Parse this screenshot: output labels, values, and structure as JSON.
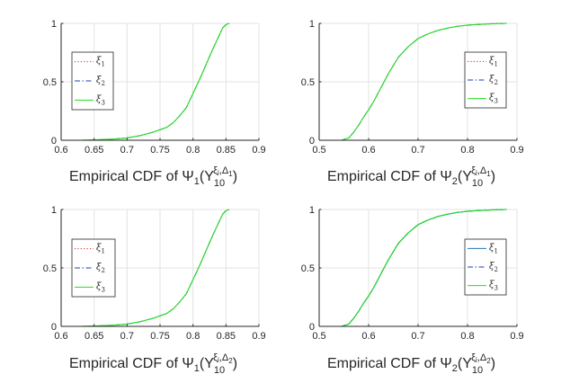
{
  "figure": {
    "panels": [
      {
        "xlabel": {
          "text": "Empirical CDF of ",
          "sym": "Ψ",
          "sym_sub": "1",
          "open": "(Y",
          "y_sub": "10",
          "y_sup_xi": "ξ",
          "y_sup_i": "i",
          "y_sup_comma": ",",
          "y_sup_delta": "Δ",
          "y_sup_delta_sub": "1",
          "close": ")"
        }
      },
      {
        "xlabel": {
          "text": "Empirical CDF of ",
          "sym": "Ψ",
          "sym_sub": "2",
          "open": "(Y",
          "y_sub": "10",
          "y_sup_xi": "ξ",
          "y_sup_i": "i",
          "y_sup_comma": ",",
          "y_sup_delta": "Δ",
          "y_sup_delta_sub": "1",
          "close": ")"
        }
      },
      {
        "xlabel": {
          "text": "Empirical CDF of ",
          "sym": "Ψ",
          "sym_sub": "1",
          "open": "(Y",
          "y_sub": "10",
          "y_sup_xi": "ξ",
          "y_sup_i": "i",
          "y_sup_comma": ",",
          "y_sup_delta": "Δ",
          "y_sup_delta_sub": "2",
          "close": ")"
        }
      },
      {
        "xlabel": {
          "text": "Empirical CDF of ",
          "sym": "Ψ",
          "sym_sub": "2",
          "open": "(Y",
          "y_sub": "10",
          "y_sup_xi": "ξ",
          "y_sup_i": "i",
          "y_sup_comma": ",",
          "y_sup_delta": "Δ",
          "y_sup_delta_sub": "2",
          "close": ")"
        }
      }
    ]
  },
  "chart_data": [
    {
      "type": "line",
      "title": "",
      "xlabel": "Empirical CDF of Ψ1(Y10^{ξi,Δ1})",
      "ylabel": "",
      "xlim": [
        0.6,
        0.9
      ],
      "ylim": [
        0,
        1
      ],
      "xticks": [
        "0.6",
        "0.65",
        "0.7",
        "0.75",
        "0.8",
        "0.85",
        "0.9"
      ],
      "yticks": [
        "0",
        "0.5",
        "1"
      ],
      "grid": true,
      "legend_position": "middle-left",
      "series": [
        {
          "name": "ξ",
          "sub": "1",
          "color": "#d62728",
          "dash": "dotted",
          "x": [
            0.63,
            0.65,
            0.68,
            0.7,
            0.72,
            0.74,
            0.76,
            0.77,
            0.78,
            0.79,
            0.8,
            0.81,
            0.82,
            0.83,
            0.84,
            0.845,
            0.85,
            0.855
          ],
          "y": [
            0,
            0.003,
            0.01,
            0.02,
            0.04,
            0.07,
            0.11,
            0.15,
            0.21,
            0.28,
            0.4,
            0.52,
            0.65,
            0.78,
            0.9,
            0.96,
            0.99,
            1
          ]
        },
        {
          "name": "ξ",
          "sub": "2",
          "color": "#1f3fbf",
          "dash": "dashdot",
          "x": [
            0.63,
            0.65,
            0.68,
            0.7,
            0.72,
            0.74,
            0.76,
            0.77,
            0.78,
            0.79,
            0.8,
            0.81,
            0.82,
            0.83,
            0.84,
            0.845,
            0.85,
            0.855
          ],
          "y": [
            0,
            0.003,
            0.01,
            0.02,
            0.04,
            0.07,
            0.11,
            0.15,
            0.21,
            0.28,
            0.4,
            0.52,
            0.65,
            0.78,
            0.9,
            0.96,
            0.99,
            1
          ]
        },
        {
          "name": "ξ",
          "sub": "3",
          "color": "#22dd22",
          "dash": "solid",
          "x": [
            0.63,
            0.65,
            0.68,
            0.7,
            0.72,
            0.74,
            0.76,
            0.77,
            0.78,
            0.79,
            0.8,
            0.81,
            0.82,
            0.83,
            0.84,
            0.845,
            0.85,
            0.855
          ],
          "y": [
            0,
            0.003,
            0.01,
            0.02,
            0.04,
            0.07,
            0.11,
            0.15,
            0.21,
            0.28,
            0.4,
            0.52,
            0.65,
            0.78,
            0.9,
            0.96,
            0.99,
            1
          ]
        }
      ]
    },
    {
      "type": "line",
      "title": "",
      "xlabel": "Empirical CDF of Ψ2(Y10^{ξi,Δ1})",
      "ylabel": "",
      "xlim": [
        0.5,
        0.9
      ],
      "ylim": [
        0,
        1
      ],
      "xticks": [
        "0.5",
        "0.6",
        "0.7",
        "0.8",
        "0.9"
      ],
      "yticks": [
        "0",
        "0.5",
        "1"
      ],
      "grid": true,
      "legend_position": "middle-right",
      "series": [
        {
          "name": "ξ",
          "sub": "1",
          "color": "#d62728",
          "dash": "dotted",
          "x": [
            0.545,
            0.56,
            0.57,
            0.58,
            0.59,
            0.6,
            0.61,
            0.62,
            0.63,
            0.64,
            0.65,
            0.66,
            0.68,
            0.7,
            0.72,
            0.74,
            0.76,
            0.78,
            0.8,
            0.82,
            0.85,
            0.88
          ],
          "y": [
            0,
            0.02,
            0.07,
            0.13,
            0.2,
            0.26,
            0.33,
            0.41,
            0.49,
            0.57,
            0.64,
            0.71,
            0.8,
            0.87,
            0.91,
            0.94,
            0.96,
            0.975,
            0.985,
            0.99,
            0.997,
            1
          ]
        },
        {
          "name": "ξ",
          "sub": "2",
          "color": "#1f3fbf",
          "dash": "dashdot",
          "x": [
            0.545,
            0.56,
            0.57,
            0.58,
            0.59,
            0.6,
            0.61,
            0.62,
            0.63,
            0.64,
            0.65,
            0.66,
            0.68,
            0.7,
            0.72,
            0.74,
            0.76,
            0.78,
            0.8,
            0.82,
            0.85,
            0.88
          ],
          "y": [
            0,
            0.02,
            0.07,
            0.13,
            0.2,
            0.26,
            0.33,
            0.41,
            0.49,
            0.57,
            0.64,
            0.71,
            0.8,
            0.87,
            0.91,
            0.94,
            0.96,
            0.975,
            0.985,
            0.99,
            0.997,
            1
          ]
        },
        {
          "name": "ξ",
          "sub": "3",
          "color": "#22dd22",
          "dash": "solid",
          "x": [
            0.545,
            0.56,
            0.57,
            0.58,
            0.59,
            0.6,
            0.61,
            0.62,
            0.63,
            0.64,
            0.65,
            0.66,
            0.68,
            0.7,
            0.72,
            0.74,
            0.76,
            0.78,
            0.8,
            0.82,
            0.85,
            0.88
          ],
          "y": [
            0,
            0.02,
            0.07,
            0.13,
            0.2,
            0.26,
            0.33,
            0.41,
            0.49,
            0.57,
            0.64,
            0.71,
            0.8,
            0.87,
            0.91,
            0.94,
            0.96,
            0.975,
            0.985,
            0.99,
            0.997,
            1
          ]
        }
      ]
    },
    {
      "type": "line",
      "title": "",
      "xlabel": "Empirical CDF of Ψ1(Y10^{ξi,Δ2})",
      "ylabel": "",
      "xlim": [
        0.6,
        0.9
      ],
      "ylim": [
        0,
        1
      ],
      "xticks": [
        "0.6",
        "0.65",
        "0.7",
        "0.75",
        "0.8",
        "0.85",
        "0.9"
      ],
      "yticks": [
        "0",
        "0.5",
        "1"
      ],
      "grid": true,
      "legend_position": "middle-left",
      "series": [
        {
          "name": "ξ",
          "sub": "1",
          "color": "#d62728",
          "dash": "dotted",
          "x": [
            0.63,
            0.65,
            0.68,
            0.7,
            0.72,
            0.74,
            0.76,
            0.77,
            0.78,
            0.79,
            0.8,
            0.81,
            0.82,
            0.83,
            0.84,
            0.845,
            0.85,
            0.855
          ],
          "y": [
            0,
            0.003,
            0.01,
            0.02,
            0.04,
            0.07,
            0.11,
            0.15,
            0.21,
            0.28,
            0.4,
            0.52,
            0.65,
            0.78,
            0.9,
            0.96,
            0.99,
            1
          ]
        },
        {
          "name": "ξ",
          "sub": "2",
          "color": "#1f3fbf",
          "dash": "dashdot",
          "x": [
            0.63,
            0.65,
            0.68,
            0.7,
            0.72,
            0.74,
            0.76,
            0.77,
            0.78,
            0.79,
            0.8,
            0.81,
            0.82,
            0.83,
            0.84,
            0.845,
            0.85,
            0.855
          ],
          "y": [
            0,
            0.003,
            0.01,
            0.02,
            0.04,
            0.07,
            0.11,
            0.15,
            0.21,
            0.28,
            0.4,
            0.52,
            0.65,
            0.78,
            0.9,
            0.96,
            0.99,
            1
          ]
        },
        {
          "name": "ξ",
          "sub": "3",
          "color": "#22dd22",
          "dash": "solid",
          "x": [
            0.63,
            0.65,
            0.68,
            0.7,
            0.72,
            0.74,
            0.76,
            0.77,
            0.78,
            0.79,
            0.8,
            0.81,
            0.82,
            0.83,
            0.84,
            0.845,
            0.85,
            0.855
          ],
          "y": [
            0,
            0.003,
            0.01,
            0.02,
            0.04,
            0.07,
            0.11,
            0.15,
            0.21,
            0.28,
            0.4,
            0.52,
            0.65,
            0.78,
            0.9,
            0.96,
            0.99,
            1
          ]
        }
      ]
    },
    {
      "type": "line",
      "title": "",
      "xlabel": "Empirical CDF of Ψ2(Y10^{ξi,Δ2})",
      "ylabel": "",
      "xlim": [
        0.5,
        0.9
      ],
      "ylim": [
        0,
        1
      ],
      "xticks": [
        "0.5",
        "0.6",
        "0.7",
        "0.8",
        "0.9"
      ],
      "yticks": [
        "0",
        "0.5",
        "1"
      ],
      "grid": true,
      "legend_position": "middle-right",
      "series": [
        {
          "name": "ξ",
          "sub": "1",
          "color": "#1f77b4",
          "dash": "solid",
          "x": [
            0.545,
            0.56,
            0.57,
            0.58,
            0.59,
            0.6,
            0.61,
            0.62,
            0.63,
            0.64,
            0.65,
            0.66,
            0.68,
            0.7,
            0.72,
            0.74,
            0.76,
            0.78,
            0.8,
            0.82,
            0.85,
            0.88
          ],
          "y": [
            0,
            0.02,
            0.07,
            0.13,
            0.2,
            0.26,
            0.33,
            0.41,
            0.49,
            0.57,
            0.64,
            0.71,
            0.8,
            0.87,
            0.91,
            0.94,
            0.96,
            0.975,
            0.985,
            0.99,
            0.997,
            1
          ]
        },
        {
          "name": "ξ",
          "sub": "2",
          "color": "#1f3fbf",
          "dash": "dashdot",
          "x": [
            0.545,
            0.56,
            0.57,
            0.58,
            0.59,
            0.6,
            0.61,
            0.62,
            0.63,
            0.64,
            0.65,
            0.66,
            0.68,
            0.7,
            0.72,
            0.74,
            0.76,
            0.78,
            0.8,
            0.82,
            0.85,
            0.88
          ],
          "y": [
            0,
            0.02,
            0.07,
            0.13,
            0.2,
            0.26,
            0.33,
            0.41,
            0.49,
            0.57,
            0.64,
            0.71,
            0.8,
            0.87,
            0.91,
            0.94,
            0.96,
            0.975,
            0.985,
            0.99,
            0.997,
            1
          ]
        },
        {
          "name": "ξ",
          "sub": "3",
          "color": "#22dd22",
          "dash": "solid",
          "x": [
            0.545,
            0.56,
            0.57,
            0.58,
            0.59,
            0.6,
            0.61,
            0.62,
            0.63,
            0.64,
            0.65,
            0.66,
            0.68,
            0.7,
            0.72,
            0.74,
            0.76,
            0.78,
            0.8,
            0.82,
            0.85,
            0.88
          ],
          "y": [
            0,
            0.02,
            0.07,
            0.13,
            0.2,
            0.26,
            0.33,
            0.41,
            0.49,
            0.57,
            0.64,
            0.71,
            0.8,
            0.87,
            0.91,
            0.94,
            0.96,
            0.975,
            0.985,
            0.99,
            0.997,
            1
          ]
        }
      ]
    }
  ]
}
